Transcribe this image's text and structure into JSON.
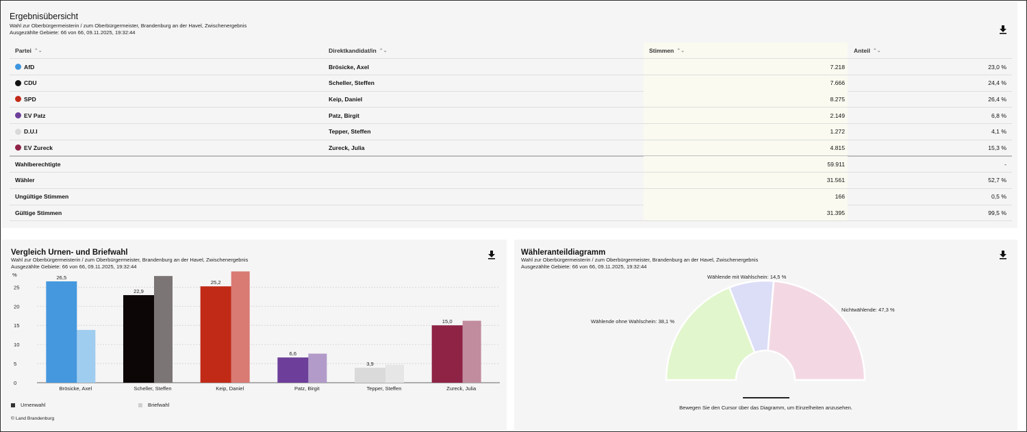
{
  "results": {
    "title": "Ergebnisübersicht",
    "subtitle": "Wahl zur Oberbürgermeisterin / zum Oberbürgermeister, Brandenburg an der Havel, Zwischenergebnis",
    "counted": "Ausgezählte Gebiete: 66 von 66, 09.11.2025, 19:32:44",
    "download_icon": "download-icon",
    "columns": {
      "party": "Partei",
      "candidate": "Direktkandidat/in",
      "votes": "Stimmen",
      "share": "Anteil"
    },
    "rows": [
      {
        "party": "AfD",
        "color": "#3e95de",
        "candidate": "Brösicke, Axel",
        "votes": "7.218",
        "share": "23,0 %"
      },
      {
        "party": "CDU",
        "color": "#111111",
        "candidate": "Scheller, Steffen",
        "votes": "7.666",
        "share": "24,4 %"
      },
      {
        "party": "SPD",
        "color": "#c12a17",
        "candidate": "Keip, Daniel",
        "votes": "8.275",
        "share": "26,4 %"
      },
      {
        "party": "EV Patz",
        "color": "#6e3f9a",
        "candidate": "Patz, Birgit",
        "votes": "2.149",
        "share": "6,8 %"
      },
      {
        "party": "D.U.I",
        "color": "#d9d9d9",
        "candidate": "Tepper, Steffen",
        "votes": "1.272",
        "share": "4,1 %"
      },
      {
        "party": "EV Zureck",
        "color": "#8e2346",
        "candidate": "Zureck, Julia",
        "votes": "4.815",
        "share": "15,3 %"
      }
    ],
    "summary": [
      {
        "label": "Wahlberechtigte",
        "votes": "59.911",
        "share": "-"
      },
      {
        "label": "Wähler",
        "votes": "31.561",
        "share": "52,7 %"
      },
      {
        "label": "Ungültige Stimmen",
        "votes": "166",
        "share": "0,5 %"
      },
      {
        "label": "Gültige Stimmen",
        "votes": "31.395",
        "share": "99,5 %"
      }
    ]
  },
  "comparison": {
    "title": "Vergleich Urnen- und Briefwahl",
    "subtitle": "Wahl zur Oberbürgermeisterin / zum Oberbürgermeister, Brandenburg an der Havel, Zwischenergebnis",
    "counted": "Ausgezählte Gebiete: 66 von 66, 09.11.2025, 19:32:44",
    "legend_urne": "Urnenwahl",
    "legend_brief": "Briefwahl",
    "copyright": "© Land Brandenburg"
  },
  "share_chart": {
    "title": "Wähleranteildiagramm",
    "subtitle": "Wahl zur Oberbürgermeisterin / zum Oberbürgermeister, Brandenburg an der Havel, Zwischenergebnis",
    "counted": "Ausgezählte Gebiete: 66 von 66, 09.11.2025, 19:32:44",
    "hint": "Bewegen Sie den Cursor über das Diagramm, um Einzelheiten anzusehen."
  },
  "chart_data": [
    {
      "type": "bar",
      "ylabel": "%",
      "ylim": [
        0,
        29
      ],
      "yticks": [
        0,
        5,
        10,
        15,
        20,
        25
      ],
      "grid": true,
      "legend_position": "bottom-left",
      "categories": [
        "Brösicke, Axel",
        "Scheller, Steffen",
        "Keip, Daniel",
        "Patz, Birgit",
        "Tepper, Steffen",
        "Zureck, Julia"
      ],
      "series": [
        {
          "name": "Urnenwahl",
          "values": [
            26.5,
            22.9,
            25.2,
            6.6,
            3.9,
            15.0
          ],
          "labels": [
            "26,5",
            "22,9",
            "25,2",
            "6,6",
            "3,9",
            "15,0"
          ],
          "colors": [
            "#4698de",
            "#0d0607",
            "#c12a17",
            "#6e3f9a",
            "#dadada",
            "#8e2346"
          ]
        },
        {
          "name": "Briefwahl",
          "values": [
            13.8,
            27.9,
            29.1,
            7.6,
            4.7,
            16.2
          ],
          "colors": [
            "#9fcdf0",
            "#7b7575",
            "#d97a73",
            "#b29bc9",
            "#e6e6e6",
            "#c18c9e"
          ]
        }
      ]
    },
    {
      "type": "pie",
      "subtype": "half-donut",
      "slices": [
        {
          "label": "Wählende ohne Wahlschein: 38,1 %",
          "value": 38.1,
          "color": "#e1f6cc"
        },
        {
          "label": "Wählende mit Wahlschein: 14,5 %",
          "value": 14.5,
          "color": "#dcdef7"
        },
        {
          "label": "Nichtwählende: 47,3 %",
          "value": 47.3,
          "color": "#f3d8e4"
        }
      ]
    }
  ]
}
